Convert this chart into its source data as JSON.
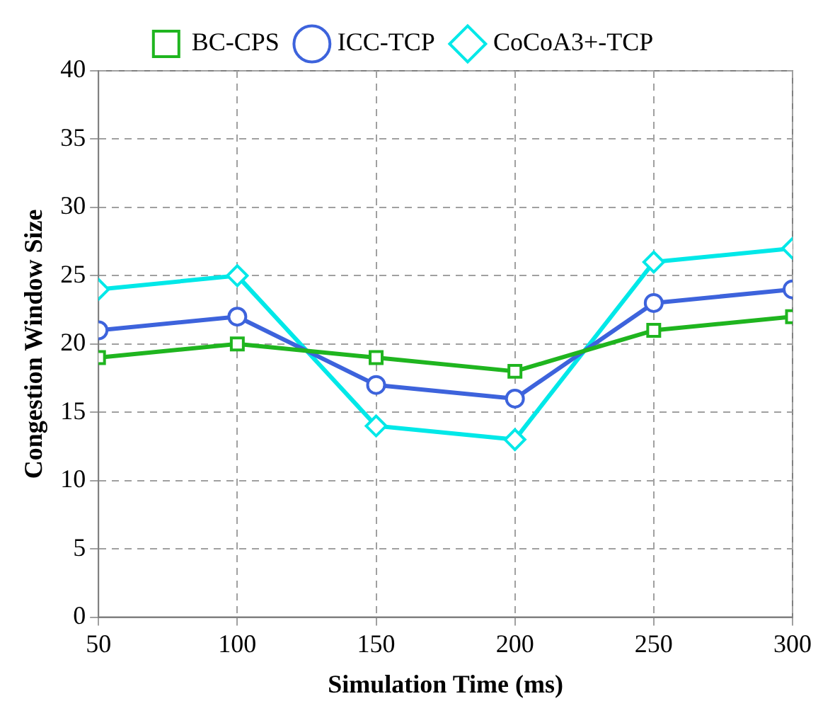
{
  "chart_data": {
    "type": "line",
    "xlabel": "Simulation Time (ms)",
    "ylabel": "Congestion Window Size",
    "x": [
      50,
      100,
      150,
      200,
      250,
      300
    ],
    "series": [
      {
        "name": "BC-CPS",
        "color": "#1fb51f",
        "marker": "square",
        "values": [
          19,
          20,
          19,
          18,
          21,
          22
        ]
      },
      {
        "name": "ICC-TCP",
        "color": "#3d63dc",
        "marker": "circle",
        "values": [
          21,
          22,
          17,
          16,
          23,
          24
        ]
      },
      {
        "name": "CoCoA3+-TCP",
        "color": "#00e8e8",
        "marker": "diamond",
        "values": [
          24,
          25,
          14,
          13,
          26,
          27
        ]
      }
    ],
    "xlim": [
      50,
      300
    ],
    "xticks": [
      50,
      100,
      150,
      200,
      250,
      300
    ],
    "ylim": [
      0,
      40
    ],
    "yticks": [
      0,
      5,
      10,
      15,
      20,
      25,
      30,
      35,
      40
    ],
    "grid": true,
    "legend": "top",
    "line_style": "solid"
  }
}
